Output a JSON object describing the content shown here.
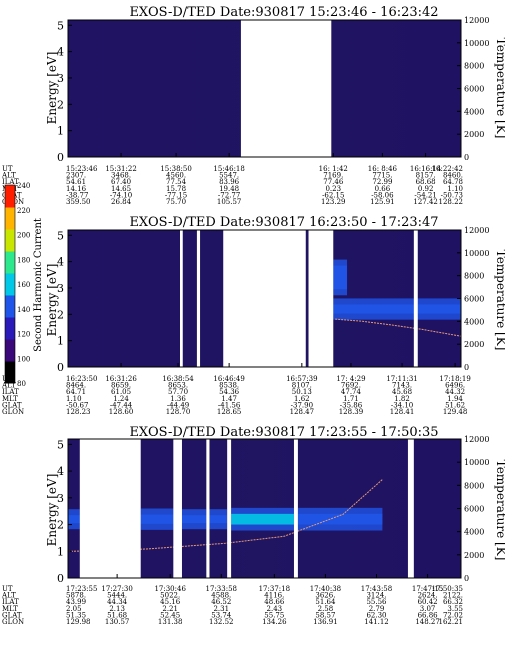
{
  "chart_data": [
    {
      "type": "heatmap",
      "title": "EXOS-D/TED   Date:930817   15:23:46 - 16:23:42",
      "ylabel": "Energy [eV]",
      "y2label": "Temperature [K]",
      "ylim": [
        0,
        5.2
      ],
      "y2lim": [
        0,
        12000
      ],
      "yticks": [
        "0",
        "1",
        "2",
        "3",
        "4",
        "5"
      ],
      "y2ticks": [
        "0",
        "2000",
        "4000",
        "6000",
        "8000",
        "10000",
        "12000"
      ],
      "grid": false,
      "background_level": 90,
      "gaps": [
        [
          0.44,
          0.67
        ]
      ],
      "bands": [],
      "temperature_trace": [],
      "table": {
        "row_labels": [
          "UT",
          "ALT",
          "ILAT",
          "MLT",
          "GLAT",
          "GLON"
        ],
        "columns": [
          {
            "x": 0.0,
            "values": [
              "15:23:46",
              "2307.",
              "54.61",
              "14.16",
              "-38.77",
              "359.50"
            ]
          },
          {
            "x": 0.135,
            "values": [
              "15:31:22",
              "3468.",
              "67.40",
              "14.65",
              "-74.10",
              "26.84"
            ]
          },
          {
            "x": 0.275,
            "values": [
              "15:38:50",
              "4560.",
              "77.54",
              "15.78",
              "-77.15",
              "75.70"
            ]
          },
          {
            "x": 0.41,
            "values": [
              "15:46:18",
              "5547.",
              "83.96",
              "19.48",
              "-72.77",
              "105.57"
            ]
          },
          {
            "x": 0.675,
            "values": [
              "16: 1:42",
              "7169.",
              "77.46",
              "0.23",
              "-62.15",
              "123.29"
            ]
          },
          {
            "x": 0.8,
            "values": [
              "16: 8:46",
              "7715.",
              "72.99",
              "0.66",
              "-58.06",
              "125.91"
            ]
          },
          {
            "x": 0.91,
            "values": [
              "16:16:14",
              "8157.",
              "68.68",
              "0.92",
              "-54.21",
              "127.42"
            ]
          },
          {
            "x": 1.0,
            "values": [
              "16:22:42",
              "8460.",
              "64.78",
              "1.10",
              "-50.73",
              "128.22"
            ]
          }
        ]
      }
    },
    {
      "type": "heatmap",
      "title": "EXOS-D/TED   Date:930817   16:23:50 - 17:23:47",
      "ylabel": "Energy [eV]",
      "y2label": "Temperature [K]",
      "ylim": [
        0,
        5.2
      ],
      "y2lim": [
        0,
        12000
      ],
      "yticks": [
        "0",
        "1",
        "2",
        "3",
        "4",
        "5"
      ],
      "y2ticks": [
        "0",
        "2000",
        "4000",
        "6000",
        "8000",
        "10000",
        "12000"
      ],
      "grid": false,
      "background_level": 90,
      "gaps": [
        [
          0.285,
          0.292
        ],
        [
          0.328,
          0.336
        ],
        [
          0.395,
          0.605
        ],
        [
          0.612,
          0.675
        ],
        [
          0.88,
          0.89
        ]
      ],
      "bands": [
        {
          "x": [
            0.675,
            1.0
          ],
          "center_ev": 2.2,
          "width_ev": 0.35,
          "level": 150
        },
        {
          "x": [
            0.675,
            0.71
          ],
          "center_ev": 3.4,
          "width_ev": 0.9,
          "level": 140
        }
      ],
      "temperature_trace": [
        {
          "x": 0.68,
          "k": 4200
        },
        {
          "x": 0.75,
          "k": 4000
        },
        {
          "x": 0.82,
          "k": 3700
        },
        {
          "x": 0.9,
          "k": 3300
        },
        {
          "x": 1.0,
          "k": 2700
        }
      ],
      "table": {
        "row_labels": [
          "UT",
          "ALT",
          "ILAT",
          "MLT",
          "GLAT",
          "GLON"
        ],
        "columns": [
          {
            "x": 0.0,
            "values": [
              "16:23:50",
              "8464.",
              "64.71",
              "1.10",
              "-50.67",
              "128.23"
            ]
          },
          {
            "x": 0.135,
            "values": [
              "16:31:26",
              "8659.",
              "61.05",
              "1.24",
              "-47.44",
              "128.60"
            ]
          },
          {
            "x": 0.28,
            "values": [
              "16:38:54",
              "8653.",
              "57.70",
              "1.36",
              "-44.49",
              "128.70"
            ]
          },
          {
            "x": 0.41,
            "values": [
              "16:46:49",
              "8538.",
              "54.36",
              "1.47",
              "-41.56",
              "128.65"
            ]
          },
          {
            "x": 0.595,
            "values": [
              "16:57:39",
              "8107.",
              "50.13",
              "1.62",
              "-37.90",
              "128.47"
            ]
          },
          {
            "x": 0.72,
            "values": [
              "17: 4:29",
              "7692.",
              "47.74",
              "1.71",
              "-35.86",
              "128.39"
            ]
          },
          {
            "x": 0.85,
            "values": [
              "17:11:31",
              "7143.",
              "45.68",
              "1.82",
              "-34.10",
              "128.41"
            ]
          },
          {
            "x": 0.985,
            "values": [
              "17:18:19",
              "6496.",
              "44.32",
              "1.94",
              "51.62",
              "129.48"
            ]
          }
        ]
      }
    },
    {
      "type": "heatmap",
      "title": "EXOS-D/TED   Date:930817   17:23:55 - 17:50:35",
      "ylabel": "Energy [eV]",
      "y2label": "Temperature [K]",
      "ylim": [
        0,
        5.2
      ],
      "y2lim": [
        0,
        12000
      ],
      "yticks": [
        "0",
        "1",
        "2",
        "3",
        "4",
        "5"
      ],
      "y2ticks": [
        "0",
        "2000",
        "4000",
        "6000",
        "8000",
        "10000",
        "12000"
      ],
      "grid": false,
      "background_level": 90,
      "gaps": [
        [
          0.03,
          0.185
        ],
        [
          0.268,
          0.29
        ],
        [
          0.352,
          0.36
        ],
        [
          0.405,
          0.415
        ],
        [
          0.575,
          0.585
        ],
        [
          0.865,
          0.88
        ]
      ],
      "bands": [
        {
          "x": [
            0.0,
            0.03
          ],
          "center_ev": 2.2,
          "width_ev": 0.3,
          "level": 150
        },
        {
          "x": [
            0.185,
            0.268
          ],
          "center_ev": 2.2,
          "width_ev": 0.35,
          "level": 150
        },
        {
          "x": [
            0.29,
            0.352
          ],
          "center_ev": 2.2,
          "width_ev": 0.3,
          "level": 150
        },
        {
          "x": [
            0.36,
            0.405
          ],
          "center_ev": 2.2,
          "width_ev": 0.3,
          "level": 150
        },
        {
          "x": [
            0.415,
            0.575
          ],
          "center_ev": 2.2,
          "width_ev": 0.4,
          "level": 155
        },
        {
          "x": [
            0.585,
            0.8
          ],
          "center_ev": 2.2,
          "width_ev": 0.4,
          "level": 150
        }
      ],
      "temperature_trace": [
        {
          "x": 0.0,
          "k": 2300
        },
        {
          "x": 0.2,
          "k": 2500
        },
        {
          "x": 0.4,
          "k": 3000
        },
        {
          "x": 0.55,
          "k": 3600
        },
        {
          "x": 0.7,
          "k": 5500
        },
        {
          "x": 0.8,
          "k": 8500
        }
      ],
      "table": {
        "row_labels": [
          "UT",
          "ALT",
          "ILAT",
          "MLT",
          "GLAT",
          "GLON"
        ],
        "columns": [
          {
            "x": 0.0,
            "values": [
              "17:23:55",
              "5878.",
              "43.99",
              "2.05",
              "51.35",
              "129.98"
            ]
          },
          {
            "x": 0.125,
            "values": [
              "17:27:30",
              "5444.",
              "44.34",
              "2.13",
              "51.68",
              "130.57"
            ]
          },
          {
            "x": 0.26,
            "values": [
              "17:30:46",
              "5022.",
              "45.16",
              "2.21",
              "52.45",
              "131.38"
            ]
          },
          {
            "x": 0.39,
            "values": [
              "17:33:58",
              "4588.",
              "46.52",
              "2.31",
              "53.74",
              "132.52"
            ]
          },
          {
            "x": 0.525,
            "values": [
              "17:37:18",
              "4116.",
              "48.66",
              "2.43",
              "55.75",
              "134.26"
            ]
          },
          {
            "x": 0.655,
            "values": [
              "17:40:38",
              "3626.",
              "51.64",
              "2.58",
              "58.57",
              "136.91"
            ]
          },
          {
            "x": 0.785,
            "values": [
              "17:43:58",
              "3124.",
              "55.56",
              "2.79",
              "62.30",
              "141.12"
            ]
          },
          {
            "x": 0.915,
            "values": [
              "17:47:15",
              "2624.",
              "60.42",
              "3.07",
              "66.86",
              "148.27"
            ]
          },
          {
            "x": 1.0,
            "values": [
              "17:50:35",
              "2122.",
              "66.32",
              "3.55",
              "72.02",
              "162.21"
            ]
          }
        ]
      }
    }
  ],
  "colorbar": {
    "label": "Second Harmonic Current",
    "min": 80,
    "max": 240,
    "ticks": [
      "80",
      "100",
      "120",
      "140",
      "160",
      "180",
      "200",
      "220",
      "240"
    ],
    "colors": [
      "#000000",
      "#3a0878",
      "#2a1bb8",
      "#1f55e8",
      "#00c8e6",
      "#2de88c",
      "#c8e600",
      "#ffb400",
      "#ff1e00"
    ]
  },
  "colors": {
    "temperature_trace": "#e89a78"
  }
}
